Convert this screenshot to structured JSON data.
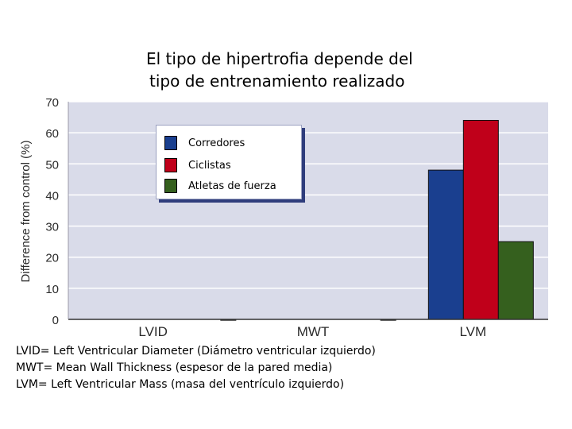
{
  "title": {
    "line1": "El tipo de hipertrofia depende del",
    "line2": "tipo de entrenamiento realizado"
  },
  "chart_data": {
    "type": "bar",
    "categories": [
      "LVID",
      "MWT",
      "LVM"
    ],
    "series": [
      {
        "name": "Corredores",
        "color": "#1a3f8f",
        "values": [
          0,
          0,
          48
        ]
      },
      {
        "name": "Ciclistas",
        "color": "#c0001a",
        "values": [
          0,
          0,
          64
        ]
      },
      {
        "name": "Atletas de fuerza",
        "color": "#35601e",
        "values": [
          0,
          0,
          25
        ]
      }
    ],
    "ylabel": "Difference from control (%)",
    "xlabel": "",
    "ylim": [
      0,
      70
    ],
    "yticks": [
      "0",
      "10",
      "20",
      "30",
      "40",
      "50",
      "60",
      "70"
    ],
    "grid": true,
    "plot_background": "#d9dbe9",
    "legend_position": "top-center"
  },
  "footnotes": [
    "LVID= Left Ventricular Diameter (Diámetro ventricular izquierdo)",
    "MWT= Mean Wall Thickness (espesor de la pared media)",
    "LVM= Left Ventricular Mass (masa del ventrículo izquierdo)"
  ]
}
